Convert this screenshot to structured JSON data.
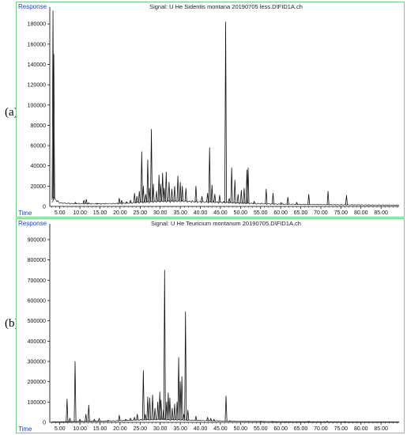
{
  "panels": [
    {
      "letter": "(a)",
      "chart_data": {
        "type": "line",
        "title": "Signal: U He Sidentis montana 20190705 less.D\\FID1A.ch",
        "ylabel": "Response",
        "xlabel": "Time",
        "xlim": [
          2.5,
          89.5
        ],
        "ylim": [
          0,
          195000
        ],
        "xticks": [
          "5.00",
          "10.00",
          "15.00",
          "20.00",
          "25.00",
          "30.00",
          "35.00",
          "40.00",
          "45.00",
          "50.00",
          "55.00",
          "60.00",
          "65.00",
          "70.00",
          "75.00",
          "80.00",
          "85.00"
        ],
        "yticks": [
          "20000",
          "40000",
          "60000",
          "80000",
          "100000",
          "120000",
          "140000",
          "160000",
          "180000"
        ],
        "baseline": [
          [
            3.0,
            4000
          ],
          [
            3.6,
            9000
          ],
          [
            4.2,
            5500
          ],
          [
            5,
            3500
          ],
          [
            8,
            2800
          ],
          [
            15,
            2600
          ],
          [
            20,
            2900
          ],
          [
            25,
            4000
          ],
          [
            30,
            5000
          ],
          [
            35,
            5200
          ],
          [
            40,
            4500
          ],
          [
            45,
            4000
          ],
          [
            50,
            3300
          ],
          [
            55,
            2700
          ],
          [
            60,
            2200
          ],
          [
            70,
            1800
          ],
          [
            80,
            1500
          ],
          [
            89,
            1300
          ]
        ],
        "peaks": [
          [
            3.3,
            193000
          ],
          [
            3.5,
            150000
          ],
          [
            8.9,
            4000
          ],
          [
            11.0,
            6000
          ],
          [
            11.6,
            7000
          ],
          [
            12.2,
            3500
          ],
          [
            14.3,
            3000
          ],
          [
            19.8,
            8000
          ],
          [
            20.4,
            6000
          ],
          [
            21.6,
            4500
          ],
          [
            22.6,
            6000
          ],
          [
            23.6,
            13000
          ],
          [
            24.2,
            10000
          ],
          [
            24.8,
            15000
          ],
          [
            25.4,
            54000
          ],
          [
            25.8,
            20000
          ],
          [
            26.4,
            12000
          ],
          [
            26.9,
            46000
          ],
          [
            27.3,
            18000
          ],
          [
            27.8,
            76000
          ],
          [
            28.3,
            22000
          ],
          [
            29.1,
            15000
          ],
          [
            29.7,
            31000
          ],
          [
            30.1,
            22000
          ],
          [
            30.6,
            33000
          ],
          [
            31.0,
            18000
          ],
          [
            31.5,
            34000
          ],
          [
            32.2,
            24000
          ],
          [
            32.9,
            17000
          ],
          [
            33.6,
            20000
          ],
          [
            34.4,
            30000
          ],
          [
            35.0,
            24000
          ],
          [
            35.5,
            20000
          ],
          [
            36.4,
            18000
          ],
          [
            38.9,
            20000
          ],
          [
            40.4,
            10000
          ],
          [
            41.8,
            13000
          ],
          [
            42.3,
            58000
          ],
          [
            42.9,
            21000
          ],
          [
            43.6,
            12000
          ],
          [
            44.8,
            11000
          ],
          [
            45.8,
            5000
          ],
          [
            46.3,
            182000
          ],
          [
            47.2,
            8000
          ],
          [
            47.8,
            38000
          ],
          [
            48.6,
            26000
          ],
          [
            49.4,
            12000
          ],
          [
            50.2,
            16000
          ],
          [
            50.9,
            18000
          ],
          [
            51.6,
            36000
          ],
          [
            51.9,
            38000
          ],
          [
            53.4,
            5000
          ],
          [
            56.4,
            17000
          ],
          [
            58.1,
            13000
          ],
          [
            60.1,
            4000
          ],
          [
            61.8,
            9000
          ],
          [
            64.0,
            4000
          ],
          [
            67.0,
            12000
          ],
          [
            71.8,
            15000
          ],
          [
            76.4,
            11000
          ]
        ]
      }
    },
    {
      "letter": "(b)",
      "chart_data": {
        "type": "line",
        "title": "Signal: U He Teuricium montanum 20190705.D\\FID1A.ch",
        "ylabel": "Response",
        "xlabel": "Time",
        "xlim": [
          2.5,
          89.5
        ],
        "ylim": [
          0,
          970000
        ],
        "xticks": [
          "5.00",
          "10.00",
          "15.00",
          "20.00",
          "25.00",
          "30.00",
          "35.00",
          "40.00",
          "45.00",
          "50.00",
          "55.00",
          "60.00",
          "65.00",
          "70.00",
          "75.00",
          "80.00",
          "85.00"
        ],
        "yticks": [
          "100000",
          "200000",
          "300000",
          "400000",
          "500000",
          "600000",
          "700000",
          "800000",
          "900000"
        ],
        "baseline": [
          [
            3.0,
            3000
          ],
          [
            5,
            3000
          ],
          [
            10,
            5000
          ],
          [
            15,
            6000
          ],
          [
            20,
            8000
          ],
          [
            25,
            12000
          ],
          [
            30,
            14000
          ],
          [
            35,
            12000
          ],
          [
            40,
            9000
          ],
          [
            45,
            7000
          ],
          [
            50,
            5000
          ],
          [
            60,
            3500
          ],
          [
            70,
            3000
          ],
          [
            80,
            2500
          ],
          [
            89,
            2500
          ]
        ],
        "peaks": [
          [
            6.8,
            115000
          ],
          [
            7.5,
            20000
          ],
          [
            8.8,
            300000
          ],
          [
            10.0,
            15000
          ],
          [
            11.5,
            40000
          ],
          [
            12.2,
            85000
          ],
          [
            13.6,
            15000
          ],
          [
            14.8,
            20000
          ],
          [
            17.0,
            10000
          ],
          [
            19.8,
            35000
          ],
          [
            21.4,
            15000
          ],
          [
            22.6,
            20000
          ],
          [
            23.6,
            25000
          ],
          [
            24.3,
            40000
          ],
          [
            25.2,
            15000
          ],
          [
            25.8,
            255000
          ],
          [
            26.3,
            40000
          ],
          [
            26.9,
            125000
          ],
          [
            27.4,
            120000
          ],
          [
            28.1,
            135000
          ],
          [
            28.7,
            70000
          ],
          [
            29.4,
            100000
          ],
          [
            29.9,
            150000
          ],
          [
            30.2,
            110000
          ],
          [
            30.8,
            60000
          ],
          [
            31.1,
            750000
          ],
          [
            31.6,
            100000
          ],
          [
            32.0,
            145000
          ],
          [
            32.4,
            120000
          ],
          [
            33.0,
            70000
          ],
          [
            33.6,
            90000
          ],
          [
            34.2,
            100000
          ],
          [
            34.6,
            320000
          ],
          [
            35.0,
            200000
          ],
          [
            35.4,
            225000
          ],
          [
            35.9,
            40000
          ],
          [
            36.3,
            545000
          ],
          [
            36.9,
            60000
          ],
          [
            38.9,
            30000
          ],
          [
            41.8,
            25000
          ],
          [
            42.6,
            20000
          ],
          [
            43.4,
            15000
          ],
          [
            46.4,
            130000
          ],
          [
            47.4,
            8000
          ],
          [
            55.0,
            5000
          ],
          [
            58.0,
            4000
          ],
          [
            67.0,
            5000
          ],
          [
            71.6,
            5000
          ],
          [
            76.0,
            4000
          ]
        ]
      }
    }
  ]
}
